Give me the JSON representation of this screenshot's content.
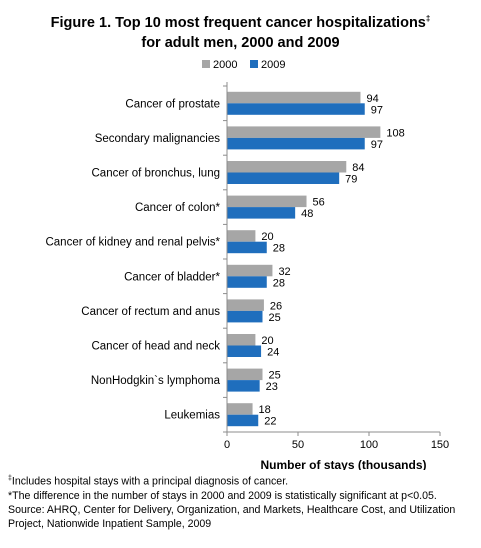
{
  "chart_data": {
    "type": "bar",
    "orientation": "horizontal",
    "title_line1": "Figure 1. Top 10 most frequent cancer hospitalizations",
    "title_mark": "‡",
    "title_line2": "for adult men, 2000 and 2009",
    "xlabel": "Number of stays (thousands)",
    "xlim": [
      0,
      150
    ],
    "xticks": [
      0,
      50,
      100,
      150
    ],
    "grid": false,
    "legend_position": "top",
    "categories": [
      "Cancer of prostate",
      "Secondary malignancies",
      "Cancer of bronchus, lung",
      "Cancer of colon*",
      "Cancer of kidney and renal pelvis*",
      "Cancer of bladder*",
      "Cancer of rectum and anus",
      "Cancer of head and neck",
      "NonHodgkin`s lymphoma",
      "Leukemias"
    ],
    "series": [
      {
        "name": "2000",
        "color": "#a6a6a6",
        "values": [
          94,
          108,
          84,
          56,
          20,
          32,
          26,
          20,
          25,
          18
        ]
      },
      {
        "name": "2009",
        "color": "#1f6ebd",
        "values": [
          97,
          97,
          79,
          48,
          28,
          28,
          25,
          24,
          23,
          22
        ]
      }
    ]
  },
  "footnotes": {
    "mark": "‡",
    "line1": "Includes hospital stays with a principal diagnosis of cancer.",
    "line2": "*The difference in the number of stays in 2000 and 2009 is statistically significant at p<0.05.",
    "line3": "Source: AHRQ, Center for Delivery, Organization, and Markets, Healthcare Cost, and Utilization",
    "line4": "Project, Nationwide Inpatient Sample, 2009"
  }
}
